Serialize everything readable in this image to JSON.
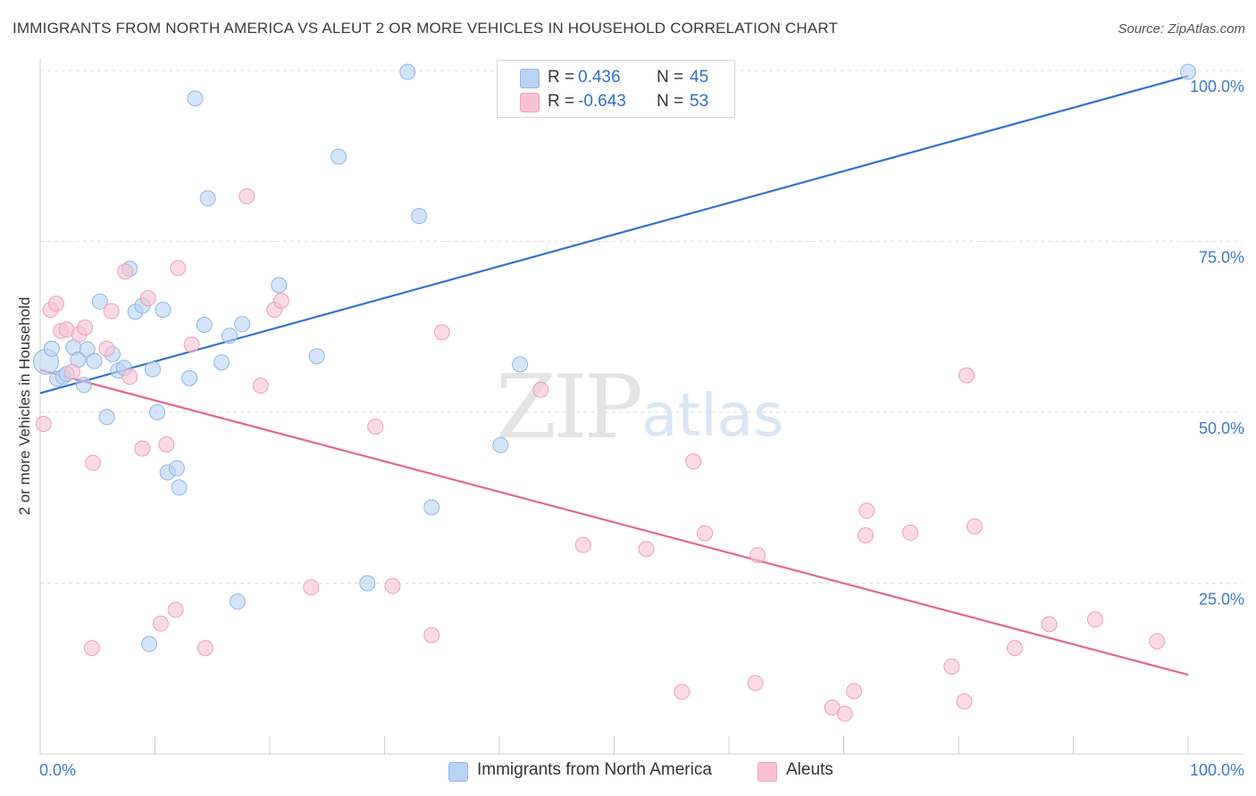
{
  "title": "IMMIGRANTS FROM NORTH AMERICA VS ALEUT 2 OR MORE VEHICLES IN HOUSEHOLD CORRELATION CHART",
  "source": "Source: ZipAtlas.com",
  "watermark": {
    "zip": "ZIP",
    "atlas": "atlas"
  },
  "legend": {
    "rows": [
      {
        "r_label": "R =",
        "r_value": " 0.436",
        "n_label": "N =",
        "n_value": "45",
        "color": "#b9d3f3"
      },
      {
        "r_label": "R =",
        "r_value": "-0.643",
        "n_label": "N =",
        "n_value": "53",
        "color": "#f8c2d4"
      }
    ]
  },
  "bottom_legend": [
    {
      "label": "Immigrants from North America",
      "color": "#b9d3f3"
    },
    {
      "label": "Aleuts",
      "color": "#f8c2d4"
    }
  ],
  "chart_data": {
    "type": "scatter",
    "title": "IMMIGRANTS FROM NORTH AMERICA VS ALEUT 2 OR MORE VEHICLES IN HOUSEHOLD CORRELATION CHART",
    "xlabel": "",
    "ylabel": "2 or more Vehicles in Household",
    "xlim": [
      0,
      100
    ],
    "ylim": [
      0,
      100
    ],
    "x_tick_labels": [
      "0.0%",
      "100.0%"
    ],
    "y_tick_values": [
      25,
      50,
      75,
      100
    ],
    "y_tick_labels": [
      "25.0%",
      "50.0%",
      "75.0%",
      "100.0%"
    ],
    "grid": "horizontal dashed",
    "legend_position": "top-center",
    "series": [
      {
        "name": "Immigrants from North America",
        "color": "#b9d3f3",
        "edge": "#8fb4e6",
        "trend_color": "#2f72cf",
        "trend": {
          "x": [
            0,
            100
          ],
          "y": [
            52.8,
            99.2
          ]
        },
        "points": [
          [
            0.5,
            57.4
          ],
          [
            1.0,
            59.3
          ],
          [
            1.5,
            54.9
          ],
          [
            2.0,
            55.2
          ],
          [
            2.3,
            55.6
          ],
          [
            2.9,
            59.5
          ],
          [
            3.3,
            57.7
          ],
          [
            3.8,
            54.0
          ],
          [
            4.1,
            59.2
          ],
          [
            4.7,
            57.5
          ],
          [
            5.2,
            66.2
          ],
          [
            5.8,
            49.3
          ],
          [
            6.3,
            58.5
          ],
          [
            6.8,
            56.1
          ],
          [
            7.3,
            56.5
          ],
          [
            7.8,
            71.0
          ],
          [
            8.3,
            64.7
          ],
          [
            8.9,
            65.6
          ],
          [
            9.5,
            16.1
          ],
          [
            9.8,
            56.3
          ],
          [
            10.2,
            50.0
          ],
          [
            10.7,
            65.0
          ],
          [
            11.1,
            41.2
          ],
          [
            11.9,
            41.8
          ],
          [
            12.1,
            39.0
          ],
          [
            13.0,
            55.0
          ],
          [
            13.5,
            95.9
          ],
          [
            14.3,
            62.8
          ],
          [
            14.6,
            81.3
          ],
          [
            15.8,
            57.3
          ],
          [
            16.5,
            61.2
          ],
          [
            17.2,
            22.3
          ],
          [
            17.6,
            62.9
          ],
          [
            20.8,
            68.6
          ],
          [
            24.1,
            58.2
          ],
          [
            26.0,
            87.4
          ],
          [
            28.5,
            25.0
          ],
          [
            32.0,
            99.8
          ],
          [
            33.0,
            78.7
          ],
          [
            34.1,
            36.1
          ],
          [
            40.1,
            45.2
          ],
          [
            41.8,
            57.0
          ],
          [
            47.0,
            99.8
          ],
          [
            50.0,
            99.8
          ],
          [
            100.0,
            99.8
          ]
        ]
      },
      {
        "name": "Aleuts",
        "color": "#f8c2d4",
        "edge": "#eda0b9",
        "trend_color": "#e06695",
        "trend": {
          "x": [
            0,
            100
          ],
          "y": [
            56.2,
            11.6
          ]
        },
        "points": [
          [
            0.3,
            48.3
          ],
          [
            0.9,
            65.0
          ],
          [
            1.4,
            65.9
          ],
          [
            1.8,
            61.9
          ],
          [
            2.3,
            62.1
          ],
          [
            2.8,
            55.9
          ],
          [
            3.4,
            61.4
          ],
          [
            3.9,
            62.4
          ],
          [
            4.5,
            15.5
          ],
          [
            4.6,
            42.6
          ],
          [
            5.8,
            59.3
          ],
          [
            6.2,
            64.8
          ],
          [
            7.4,
            70.6
          ],
          [
            7.8,
            55.2
          ],
          [
            8.9,
            44.7
          ],
          [
            9.4,
            66.7
          ],
          [
            10.5,
            19.1
          ],
          [
            11.0,
            45.3
          ],
          [
            11.8,
            21.1
          ],
          [
            12.0,
            71.1
          ],
          [
            13.2,
            59.9
          ],
          [
            14.4,
            15.5
          ],
          [
            18.0,
            81.6
          ],
          [
            19.2,
            53.9
          ],
          [
            20.4,
            65.0
          ],
          [
            21.0,
            66.3
          ],
          [
            23.6,
            24.4
          ],
          [
            29.2,
            47.9
          ],
          [
            30.7,
            24.6
          ],
          [
            34.1,
            17.4
          ],
          [
            35.0,
            61.7
          ],
          [
            43.6,
            53.3
          ],
          [
            47.3,
            30.6
          ],
          [
            52.8,
            30.0
          ],
          [
            55.9,
            9.1
          ],
          [
            56.9,
            42.8
          ],
          [
            57.9,
            32.3
          ],
          [
            62.3,
            10.4
          ],
          [
            62.5,
            29.1
          ],
          [
            69.0,
            6.8
          ],
          [
            70.1,
            5.9
          ],
          [
            70.9,
            9.2
          ],
          [
            71.9,
            32.0
          ],
          [
            72.0,
            35.6
          ],
          [
            75.8,
            32.4
          ],
          [
            79.4,
            12.8
          ],
          [
            80.5,
            7.7
          ],
          [
            80.7,
            55.4
          ],
          [
            81.4,
            33.3
          ],
          [
            84.9,
            15.5
          ],
          [
            87.9,
            19.0
          ],
          [
            91.9,
            19.7
          ],
          [
            97.3,
            16.5
          ]
        ]
      }
    ]
  }
}
